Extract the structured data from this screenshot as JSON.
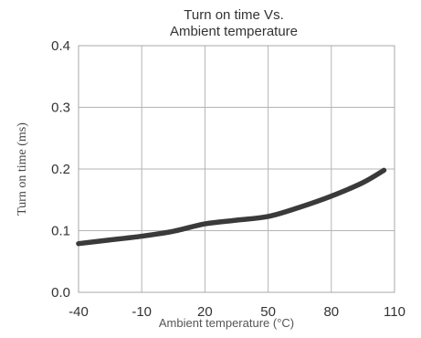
{
  "chart_data": {
    "type": "line",
    "title": [
      "Turn on time Vs.",
      "Ambient temperature"
    ],
    "xlabel": "Ambient temperature (°C)",
    "ylabel": "Turn on time (ms)",
    "xlim": [
      -40,
      110
    ],
    "ylim": [
      0.0,
      0.4
    ],
    "x_ticks": [
      -40,
      -10,
      20,
      50,
      80,
      110
    ],
    "x_tick_labels": [
      "-40",
      "-10",
      "20",
      "50",
      "80",
      "110"
    ],
    "y_ticks": [
      0.0,
      0.1,
      0.2,
      0.3,
      0.4
    ],
    "y_tick_labels": [
      "0.0",
      "0.1",
      "0.2",
      "0.3",
      "0.4"
    ],
    "grid": true,
    "line_color": "#3a3a3a",
    "series": [
      {
        "x": [
          -40,
          -25,
          -10,
          5,
          20,
          35,
          50,
          65,
          80,
          95,
          105
        ],
        "values": [
          0.079,
          0.085,
          0.091,
          0.099,
          0.111,
          0.117,
          0.123,
          0.138,
          0.156,
          0.178,
          0.198
        ]
      }
    ]
  }
}
